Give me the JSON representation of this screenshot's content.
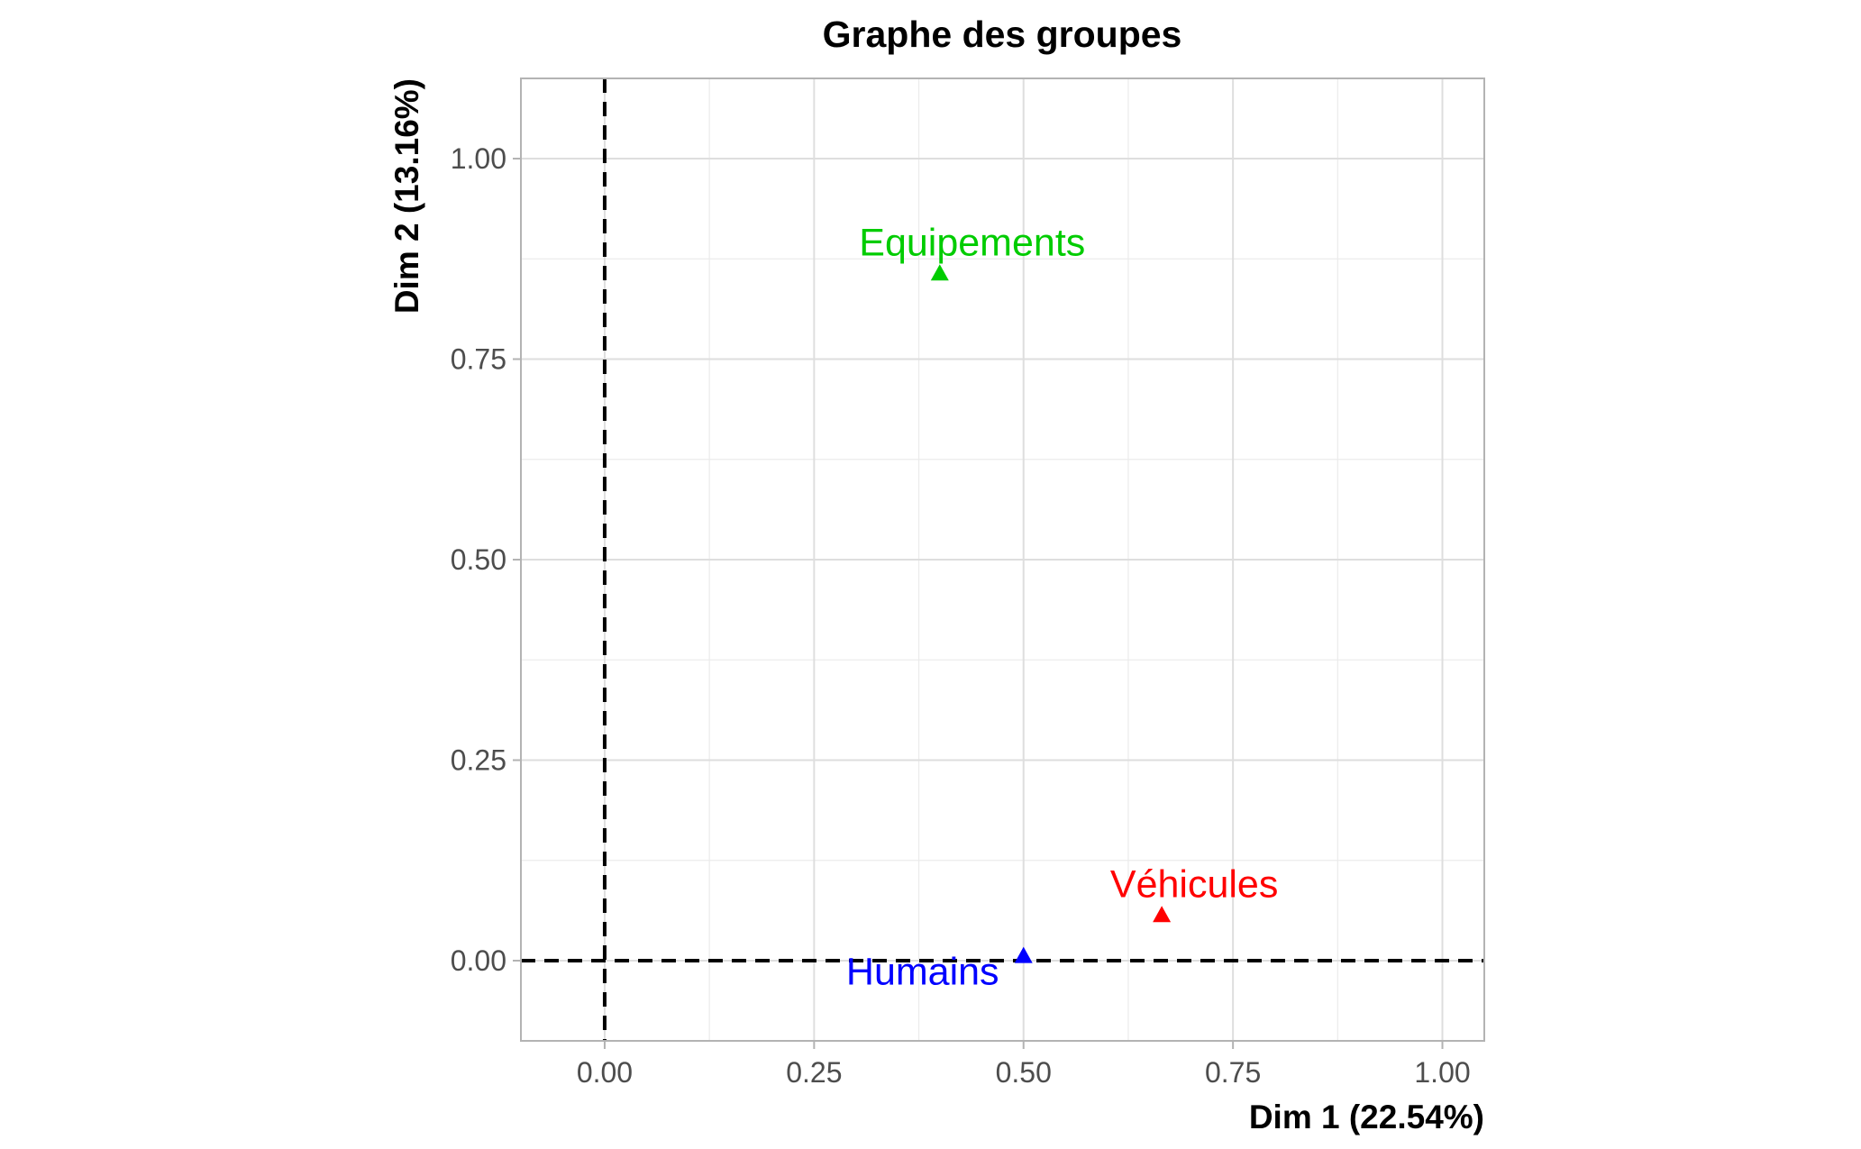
{
  "chart_data": {
    "type": "scatter",
    "title": "Graphe des groupes",
    "xlabel": "Dim 1 (22.54%)",
    "ylabel": "Dim 2 (13.16%)",
    "xlim": [
      -0.1,
      1.05
    ],
    "ylim": [
      -0.1,
      1.1
    ],
    "x_ticks": [
      0,
      0.25,
      0.5,
      0.75,
      1
    ],
    "x_tick_labels": [
      "0.00",
      "0.25",
      "0.50",
      "0.75",
      "1.00"
    ],
    "y_ticks": [
      0,
      0.25,
      0.5,
      0.75,
      1
    ],
    "y_tick_labels": [
      "0.00",
      "0.25",
      "0.50",
      "0.75",
      "1.00"
    ],
    "grid": true,
    "reference_lines": {
      "x": 0,
      "y": 0
    },
    "points": [
      {
        "label": "Véhicules",
        "x": 0.665,
        "y": 0.057,
        "color": "#ff0000"
      },
      {
        "label": "Humains",
        "x": 0.5,
        "y": 0.006,
        "color": "#0000ff"
      },
      {
        "label": "Equipements",
        "x": 0.4,
        "y": 0.857,
        "color": "#00cc00"
      }
    ]
  }
}
